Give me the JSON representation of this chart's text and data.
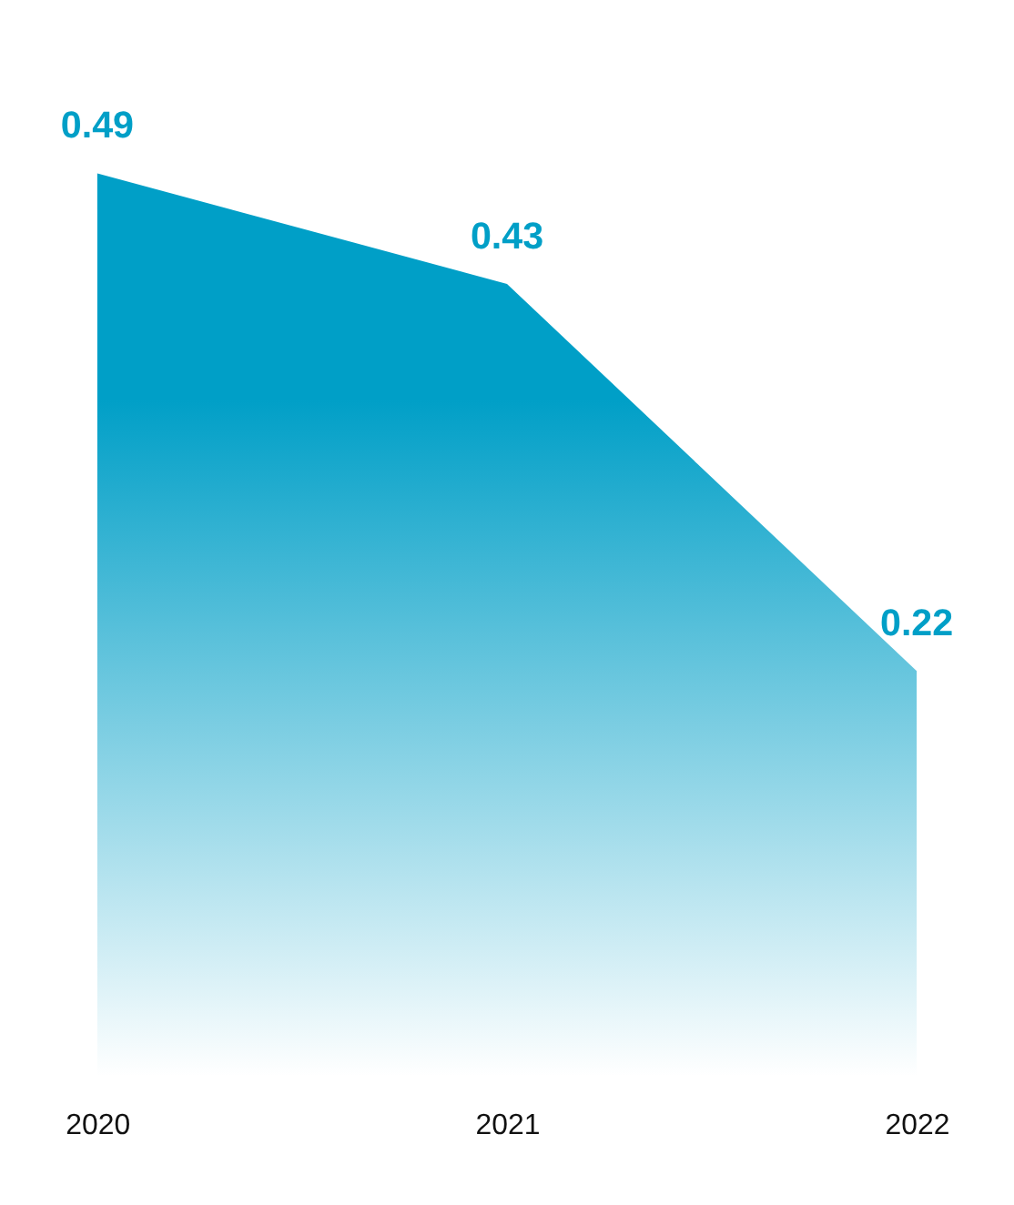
{
  "chart_data": {
    "type": "area",
    "categories": [
      "2020",
      "2021",
      "2022"
    ],
    "series": [
      {
        "color": "#009fc7",
        "values": [
          0.49,
          0.43,
          0.22
        ]
      }
    ],
    "data_labels": true,
    "grid": false
  }
}
